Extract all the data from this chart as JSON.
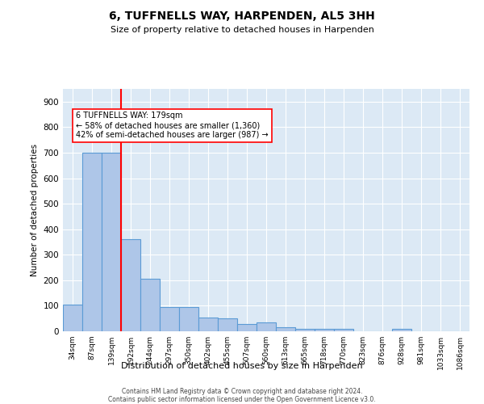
{
  "title": "6, TUFFNELLS WAY, HARPENDEN, AL5 3HH",
  "subtitle": "Size of property relative to detached houses in Harpenden",
  "xlabel": "Distribution of detached houses by size in Harpenden",
  "ylabel": "Number of detached properties",
  "categories": [
    "34sqm",
    "87sqm",
    "139sqm",
    "192sqm",
    "244sqm",
    "297sqm",
    "350sqm",
    "402sqm",
    "455sqm",
    "507sqm",
    "560sqm",
    "613sqm",
    "665sqm",
    "718sqm",
    "770sqm",
    "823sqm",
    "876sqm",
    "928sqm",
    "981sqm",
    "1033sqm",
    "1086sqm"
  ],
  "values": [
    105,
    700,
    700,
    360,
    205,
    95,
    95,
    55,
    50,
    30,
    35,
    15,
    10,
    10,
    10,
    0,
    0,
    10,
    0,
    0,
    0
  ],
  "bar_color": "#aec6e8",
  "bar_edge_color": "#5b9bd5",
  "vline_x": 2.5,
  "vline_color": "red",
  "annotation_text": "6 TUFFNELLS WAY: 179sqm\n← 58% of detached houses are smaller (1,360)\n42% of semi-detached houses are larger (987) →",
  "annotation_box_color": "white",
  "annotation_box_edge_color": "red",
  "ylim": [
    0,
    950
  ],
  "yticks": [
    0,
    100,
    200,
    300,
    400,
    500,
    600,
    700,
    800,
    900
  ],
  "background_color": "#dce9f5",
  "footer_line1": "Contains HM Land Registry data © Crown copyright and database right 2024.",
  "footer_line2": "Contains public sector information licensed under the Open Government Licence v3.0."
}
